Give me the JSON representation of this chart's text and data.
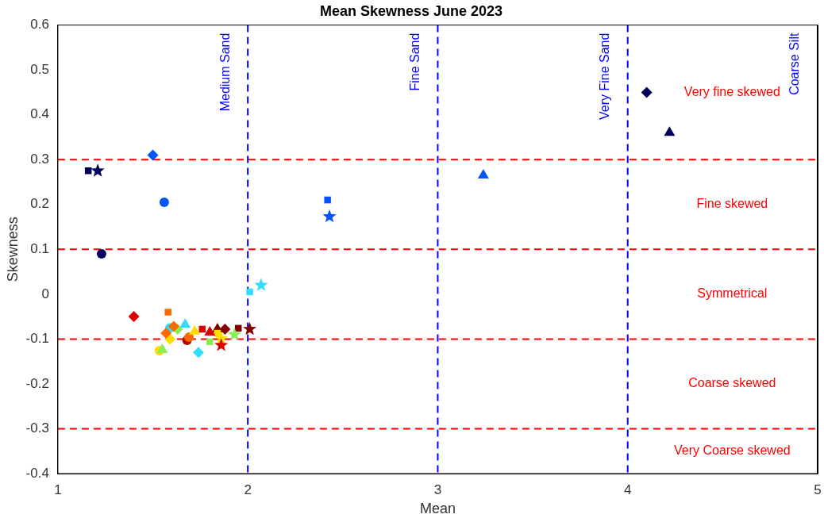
{
  "chart_data": {
    "type": "scatter",
    "title": "Mean Skewness June 2023",
    "xlabel": "Mean",
    "ylabel": "Skewness",
    "xlim": [
      1,
      5
    ],
    "xticks": [
      1,
      2,
      3,
      4,
      5
    ],
    "ylim": [
      -0.4,
      0.6
    ],
    "yticks": [
      -0.4,
      -0.3,
      -0.2,
      -0.1,
      0,
      0.1,
      0.2,
      0.3,
      0.4,
      0.5,
      0.6
    ],
    "grid": false,
    "legend": false,
    "series": [
      {
        "color": "#00005a",
        "marker": "square",
        "x": [
          1.16
        ],
        "values": [
          0.275
        ]
      },
      {
        "color": "#00005a",
        "marker": "star",
        "x": [
          1.21
        ],
        "values": [
          0.275
        ]
      },
      {
        "color": "#00005a",
        "marker": "circle",
        "x": [
          1.23
        ],
        "values": [
          0.09
        ]
      },
      {
        "color": "#00005a",
        "marker": "diamond",
        "x": [
          4.1
        ],
        "values": [
          0.45
        ]
      },
      {
        "color": "#00005a",
        "marker": "triangle",
        "x": [
          4.22
        ],
        "values": [
          0.36
        ]
      },
      {
        "color": "#0055ff",
        "marker": "diamond",
        "x": [
          1.5
        ],
        "values": [
          0.31
        ]
      },
      {
        "color": "#0055ff",
        "marker": "circle",
        "x": [
          1.56
        ],
        "values": [
          0.205
        ]
      },
      {
        "color": "#0055ff",
        "marker": "square",
        "x": [
          2.42
        ],
        "values": [
          0.21
        ]
      },
      {
        "color": "#0055ff",
        "marker": "star",
        "x": [
          2.43
        ],
        "values": [
          0.173
        ]
      },
      {
        "color": "#0055ff",
        "marker": "triangle",
        "x": [
          3.24
        ],
        "values": [
          0.265
        ]
      },
      {
        "color": "#33ddff",
        "marker": "square",
        "x": [
          2.01
        ],
        "values": [
          0.005
        ]
      },
      {
        "color": "#33ddff",
        "marker": "star",
        "x": [
          2.07
        ],
        "values": [
          0.02
        ]
      },
      {
        "color": "#33ddff",
        "marker": "circle",
        "x": [
          1.59
        ],
        "values": [
          -0.075
        ]
      },
      {
        "color": "#33ddff",
        "marker": "triangle",
        "x": [
          1.67
        ],
        "values": [
          -0.068
        ]
      },
      {
        "color": "#33ddff",
        "marker": "diamond",
        "x": [
          1.74
        ],
        "values": [
          -0.13
        ]
      },
      {
        "color": "#ffdd00",
        "marker": "circle",
        "x": [
          1.535
        ],
        "values": [
          -0.126
        ]
      },
      {
        "color": "#88ee55",
        "marker": "triangle",
        "x": [
          1.55
        ],
        "values": [
          -0.124
        ]
      },
      {
        "color": "#ff6a00",
        "marker": "square",
        "x": [
          1.58
        ],
        "values": [
          -0.04
        ]
      },
      {
        "color": "#ff6a00",
        "marker": "diamond",
        "x": [
          1.57
        ],
        "values": [
          -0.087
        ]
      },
      {
        "color": "#ff6a00",
        "marker": "diamond",
        "x": [
          1.61
        ],
        "values": [
          -0.072
        ]
      },
      {
        "color": "#88ee55",
        "marker": "diamond",
        "x": [
          1.63
        ],
        "values": [
          -0.078
        ]
      },
      {
        "color": "#ffdd00",
        "marker": "diamond",
        "x": [
          1.59
        ],
        "values": [
          -0.1
        ]
      },
      {
        "color": "#ff6a00",
        "marker": "circle",
        "x": [
          1.69
        ],
        "values": [
          -0.096
        ]
      },
      {
        "color": "#aa1100",
        "marker": "circle",
        "x": [
          1.68
        ],
        "values": [
          -0.103
        ]
      },
      {
        "color": "#ffdd00",
        "marker": "triangle",
        "x": [
          1.72
        ],
        "values": [
          -0.083
        ]
      },
      {
        "color": "#dd0000",
        "marker": "square",
        "x": [
          1.76
        ],
        "values": [
          -0.078
        ]
      },
      {
        "color": "#dd0000",
        "marker": "triangle",
        "x": [
          1.8
        ],
        "values": [
          -0.085
        ]
      },
      {
        "color": "#88ee55",
        "marker": "square",
        "x": [
          1.8
        ],
        "values": [
          -0.106
        ]
      },
      {
        "color": "#ffdd00",
        "marker": "square",
        "x": [
          1.84
        ],
        "values": [
          -0.087
        ]
      },
      {
        "color": "#800000",
        "marker": "triangle",
        "x": [
          1.84
        ],
        "values": [
          -0.078
        ]
      },
      {
        "color": "#800000",
        "marker": "diamond",
        "x": [
          1.88
        ],
        "values": [
          -0.078
        ]
      },
      {
        "color": "#ffdd00",
        "marker": "star",
        "x": [
          1.86
        ],
        "values": [
          -0.099
        ]
      },
      {
        "color": "#dd0000",
        "marker": "star",
        "x": [
          1.86
        ],
        "values": [
          -0.114
        ]
      },
      {
        "color": "#88ee55",
        "marker": "star",
        "x": [
          1.93
        ],
        "values": [
          -0.09
        ]
      },
      {
        "color": "#800000",
        "marker": "square",
        "x": [
          1.95
        ],
        "values": [
          -0.076
        ]
      },
      {
        "color": "#800000",
        "marker": "star",
        "x": [
          2.01
        ],
        "values": [
          -0.078
        ]
      },
      {
        "color": "#dd0000",
        "marker": "diamond",
        "x": [
          1.4
        ],
        "values": [
          -0.05
        ]
      }
    ],
    "ref_lines": [
      {
        "axis": "y",
        "value": 0.3,
        "color": "#ff0000",
        "line_style": "dashed"
      },
      {
        "axis": "y",
        "value": 0.1,
        "color": "#ff0000",
        "line_style": "dashed"
      },
      {
        "axis": "y",
        "value": -0.1,
        "color": "#ff0000",
        "line_style": "dashed"
      },
      {
        "axis": "y",
        "value": -0.3,
        "color": "#ff0000",
        "line_style": "dashed"
      },
      {
        "axis": "x",
        "value": 2,
        "label": "Medium Sand",
        "color": "#0000ff",
        "line_style": "dashed"
      },
      {
        "axis": "x",
        "value": 3,
        "label": "Fine Sand",
        "color": "#0000ff",
        "line_style": "dashed"
      },
      {
        "axis": "x",
        "value": 4,
        "label": "Very Fine Sand",
        "color": "#0000ff",
        "line_style": "dashed"
      },
      {
        "axis": "x",
        "value": 5,
        "label": "Coarse Silt",
        "color": "#000000",
        "line_style": "solid"
      }
    ],
    "annotations": [
      "Very fine skewed",
      "Fine skewed",
      "Symmetrical",
      "Coarse skewed",
      "Very Coarse skewed"
    ]
  }
}
